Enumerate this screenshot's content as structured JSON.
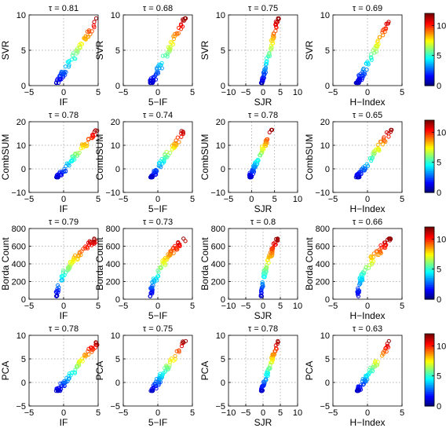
{
  "colorbar": {
    "ticks": [
      "0",
      "5",
      "10"
    ],
    "range": [
      0,
      12
    ],
    "colormap": "jet"
  },
  "chart_data": [
    {
      "type": "scatter",
      "row_label": "SVR",
      "ylim": [
        0,
        10
      ],
      "yticks": [
        "0",
        "5",
        "10"
      ],
      "panels": [
        {
          "title": "τ = 0.81",
          "xlabel": "IF",
          "xlim": [
            -5,
            5
          ],
          "xticks": [
            "−5",
            "0",
            "5"
          ],
          "x_range": [
            -1,
            5
          ]
        },
        {
          "title": "τ = 0.68",
          "xlabel": "5−IF",
          "xlim": [
            -5,
            5
          ],
          "xticks": [
            "−5",
            "0",
            "5"
          ],
          "x_range": [
            -1,
            4
          ]
        },
        {
          "title": "τ = 0.75",
          "xlabel": "SJR",
          "xlim": [
            -10,
            10
          ],
          "xticks": [
            "−10",
            "−5",
            "0",
            "5",
            "10"
          ],
          "x_range": [
            -0.5,
            4.5
          ]
        },
        {
          "title": "τ = 0.69",
          "xlabel": "H−Index",
          "xlim": [
            -5,
            5
          ],
          "xticks": [
            "−5",
            "0",
            "5"
          ],
          "x_range": [
            -1.5,
            3.5
          ]
        }
      ]
    },
    {
      "type": "scatter",
      "row_label": "CombSUM",
      "ylim": [
        -10,
        20
      ],
      "yticks": [
        "−10",
        "0",
        "10",
        "20"
      ],
      "panels": [
        {
          "title": "τ = 0.78",
          "xlabel": "IF",
          "xlim": [
            -5,
            5
          ],
          "xticks": [
            "−5",
            "0",
            "5"
          ],
          "x_range": [
            -1,
            5
          ]
        },
        {
          "title": "τ = 0.74",
          "xlabel": "5−IF",
          "xlim": [
            -5,
            5
          ],
          "xticks": [
            "−5",
            "0",
            "5"
          ],
          "x_range": [
            -1,
            4
          ]
        },
        {
          "title": "τ = 0.78",
          "xlabel": "SJR",
          "xlim": [
            -5,
            10
          ],
          "xticks": [
            "−5",
            "0",
            "5",
            "10"
          ],
          "x_range": [
            -0.5,
            4.5
          ]
        },
        {
          "title": "τ = 0.65",
          "xlabel": "H−Index",
          "xlim": [
            -5,
            5
          ],
          "xticks": [
            "−5",
            "0",
            "5"
          ],
          "x_range": [
            -1.5,
            3.5
          ]
        }
      ]
    },
    {
      "type": "scatter",
      "row_label": "Borda Count",
      "ylim": [
        0,
        800
      ],
      "yticks": [
        "0",
        "200",
        "400",
        "600",
        "800"
      ],
      "panels": [
        {
          "title": "τ = 0.79",
          "xlabel": "IF",
          "xlim": [
            -5,
            5
          ],
          "xticks": [
            "−5",
            "0",
            "5"
          ],
          "x_range": [
            -1,
            5
          ]
        },
        {
          "title": "τ = 0.73",
          "xlabel": "5−IF",
          "xlim": [
            -5,
            5
          ],
          "xticks": [
            "−5",
            "0",
            "5"
          ],
          "x_range": [
            -1,
            4
          ]
        },
        {
          "title": "τ = 0.8",
          "xlabel": "SJR",
          "xlim": [
            -10,
            10
          ],
          "xticks": [
            "−10",
            "−5",
            "0",
            "5",
            "10"
          ],
          "x_range": [
            -0.5,
            4.5
          ]
        },
        {
          "title": "τ = 0.66",
          "xlabel": "H−Index",
          "xlim": [
            -5,
            5
          ],
          "xticks": [
            "−5",
            "0",
            "5"
          ],
          "x_range": [
            -1.5,
            3.5
          ]
        }
      ]
    },
    {
      "type": "scatter",
      "row_label": "PCA",
      "ylim": [
        -5,
        10
      ],
      "yticks": [
        "−5",
        "0",
        "5",
        "10"
      ],
      "panels": [
        {
          "title": "τ = 0.78",
          "xlabel": "IF",
          "xlim": [
            -5,
            5
          ],
          "xticks": [
            "−5",
            "0",
            "5"
          ],
          "x_range": [
            -1,
            5
          ]
        },
        {
          "title": "τ = 0.75",
          "xlabel": "5−IF",
          "xlim": [
            -5,
            5
          ],
          "xticks": [
            "−5",
            "0",
            "5"
          ],
          "x_range": [
            -1,
            4
          ]
        },
        {
          "title": "τ = 0.78",
          "xlabel": "SJR",
          "xlim": [
            -10,
            10
          ],
          "xticks": [
            "−10",
            "−5",
            "0",
            "5",
            "10"
          ],
          "x_range": [
            -0.5,
            4.5
          ]
        },
        {
          "title": "τ = 0.63",
          "xlabel": "H−Index",
          "xlim": [
            -5,
            5
          ],
          "xticks": [
            "−5",
            "0",
            "5"
          ],
          "x_range": [
            -1.5,
            3.5
          ]
        }
      ]
    }
  ]
}
